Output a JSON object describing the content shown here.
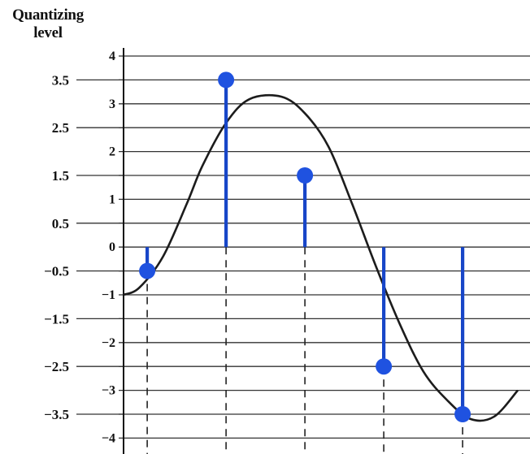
{
  "chart_data": {
    "type": "line",
    "ylabel_lines": [
      "Quantizing",
      "level"
    ],
    "ylim": [
      -4,
      4
    ],
    "yticks_integer": [
      "4",
      "3",
      "2",
      "1",
      "0",
      "−1",
      "−2",
      "−3",
      "−4"
    ],
    "yticks_half": [
      "3.5",
      "2.5",
      "1.5",
      "0.5",
      "−0.5",
      "−1.5",
      "−2.5",
      "−3.5"
    ],
    "grid": true,
    "signal_curve": {
      "x": [
        0,
        0.2,
        0.5,
        0.8,
        1.0,
        1.3,
        1.6,
        2.0,
        2.3,
        2.6,
        2.9,
        3.2,
        3.5,
        3.8,
        4.1,
        4.4,
        4.7,
        5.0
      ],
      "y": [
        -1.0,
        -0.85,
        -0.2,
        0.9,
        1.7,
        2.6,
        3.1,
        3.15,
        2.8,
        2.1,
        0.9,
        -0.4,
        -1.6,
        -2.6,
        -3.2,
        -3.6,
        -3.55,
        -3.0
      ]
    },
    "samples": [
      {
        "x": 0.3,
        "value": -0.5
      },
      {
        "x": 1.3,
        "value": 3.5
      },
      {
        "x": 2.3,
        "value": 1.5
      },
      {
        "x": 3.3,
        "value": -2.5
      },
      {
        "x": 4.3,
        "value": -3.5
      }
    ],
    "colors": {
      "sample": "#1846c8",
      "dot": "#1f52e0",
      "curve": "#1c1c1c",
      "grid": "#333333"
    }
  }
}
